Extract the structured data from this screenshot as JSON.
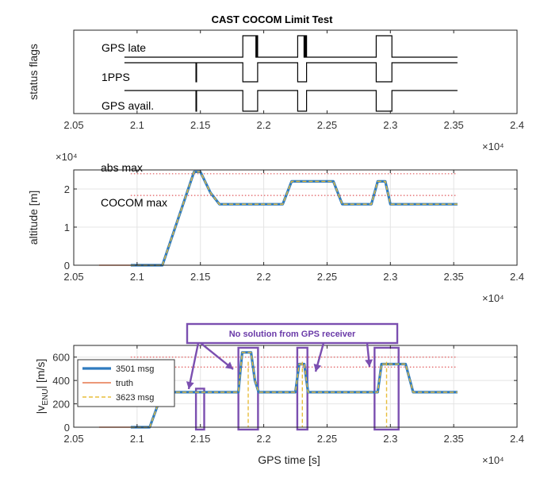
{
  "title": "CAST COCOM Limit Test",
  "colors": {
    "axis": "#262626",
    "grid": "#e4e4e4",
    "flag_line": "#000000",
    "msg3501": "#2f7bbf",
    "truth": "#e5774b",
    "msg3623": "#e8bd3a",
    "limit": "#e0595b",
    "annotation": "#7b4fb0",
    "annotation_text": "#6a3aa8"
  },
  "chart_data": [
    {
      "id": "status",
      "type": "line",
      "ylabel": "status flags",
      "xlim": [
        2.05,
        2.4
      ],
      "x_ticks": [
        2.05,
        2.1,
        2.15,
        2.2,
        2.25,
        2.3,
        2.35,
        2.4
      ],
      "x_tick_labels": [
        "2.05",
        "2.1",
        "2.15",
        "2.2",
        "2.25",
        "2.3",
        "2.35",
        "2.4"
      ],
      "x_exponent": "×10⁴",
      "grid": false,
      "series": [
        {
          "name": "GPS late",
          "x": [
            2.09,
            2.1835,
            2.1835,
            2.1938,
            2.1938,
            2.1945,
            2.1945,
            2.1952,
            2.1952,
            2.2268,
            2.2268,
            2.2318,
            2.2318,
            2.2323,
            2.2323,
            2.2328,
            2.2328,
            2.2333,
            2.2333,
            2.2338,
            2.2338,
            2.2888,
            2.2888,
            2.3012,
            2.3012,
            2.353
          ],
          "y": [
            0,
            0,
            1,
            1,
            0,
            0,
            1,
            1,
            0,
            0,
            1,
            1,
            0,
            0,
            1,
            1,
            0,
            0,
            1,
            1,
            0,
            0,
            1,
            1,
            0,
            0
          ]
        },
        {
          "name": "1PPS",
          "x": [
            2.09,
            2.1465,
            2.1465,
            2.147,
            2.147,
            2.1835,
            2.1835,
            2.1952,
            2.1952,
            2.2268,
            2.2268,
            2.2338,
            2.2338,
            2.2888,
            2.2888,
            2.3012,
            2.3012,
            2.353
          ],
          "y": [
            1,
            1,
            0,
            0,
            1,
            1,
            0,
            0,
            1,
            1,
            0,
            0,
            1,
            1,
            0,
            0,
            1,
            1
          ]
        },
        {
          "name": "GPS avail.",
          "x": [
            2.09,
            2.1465,
            2.1465,
            2.147,
            2.147,
            2.1835,
            2.1835,
            2.1952,
            2.1952,
            2.2268,
            2.2268,
            2.2338,
            2.2338,
            2.2888,
            2.2888,
            2.3012,
            2.3012,
            2.353
          ],
          "y": [
            1,
            1,
            0,
            0,
            1,
            1,
            0,
            0,
            1,
            1,
            0,
            0,
            1,
            1,
            0,
            0,
            1,
            1
          ]
        }
      ]
    },
    {
      "id": "altitude",
      "type": "line",
      "ylabel": "altitude [m]",
      "y_exponent": "×10⁴",
      "xlim": [
        2.05,
        2.4
      ],
      "ylim": [
        0,
        2.5
      ],
      "x_ticks": [
        2.05,
        2.1,
        2.15,
        2.2,
        2.25,
        2.3,
        2.35,
        2.4
      ],
      "x_tick_labels": [
        "2.05",
        "2.1",
        "2.15",
        "2.2",
        "2.25",
        "2.3",
        "2.35",
        "2.4"
      ],
      "y_ticks": [
        0,
        1,
        2
      ],
      "y_tick_labels": [
        "0",
        "1",
        "2"
      ],
      "x_exponent": "×10⁴",
      "grid": true,
      "limits": [
        {
          "label": "abs max",
          "y": 2.4
        },
        {
          "label": "COCOM max",
          "y": 1.83
        }
      ],
      "series": [
        {
          "name": "truth",
          "x": [
            2.07,
            2.095
          ],
          "y": [
            0,
            0
          ]
        },
        {
          "name": "3501 msg",
          "x": [
            2.095,
            2.12,
            2.145,
            2.15,
            2.158,
            2.165,
            2.215,
            2.222,
            2.255,
            2.262,
            2.285,
            2.29,
            2.296,
            2.3,
            2.353
          ],
          "y": [
            0,
            0,
            2.45,
            2.45,
            1.9,
            1.6,
            1.6,
            2.2,
            2.2,
            1.6,
            1.6,
            2.2,
            2.2,
            1.6,
            1.6
          ]
        },
        {
          "name": "3623 msg",
          "x": [
            2.095,
            2.12,
            2.145,
            2.15,
            2.158,
            2.165,
            2.215,
            2.222,
            2.255,
            2.262,
            2.285,
            2.29,
            2.296,
            2.3,
            2.353
          ],
          "y": [
            0,
            0,
            2.45,
            2.45,
            1.9,
            1.6,
            1.6,
            2.2,
            2.2,
            1.6,
            1.6,
            2.2,
            2.2,
            1.6,
            1.6
          ]
        }
      ]
    },
    {
      "id": "velocity",
      "type": "line",
      "ylabel": "|v_ENU| [m/s]",
      "xlabel": "GPS time [s]",
      "xlim": [
        2.05,
        2.4
      ],
      "ylim": [
        0,
        700
      ],
      "x_ticks": [
        2.05,
        2.1,
        2.15,
        2.2,
        2.25,
        2.3,
        2.35,
        2.4
      ],
      "x_tick_labels": [
        "2.05",
        "2.1",
        "2.15",
        "2.2",
        "2.25",
        "2.3",
        "2.35",
        "2.4"
      ],
      "y_ticks": [
        0,
        200,
        400,
        600
      ],
      "y_tick_labels": [
        "0",
        "200",
        "400",
        "600"
      ],
      "x_exponent": "×10⁴",
      "grid": true,
      "legend": {
        "placement": "left",
        "entries": [
          "3501 msg",
          "truth",
          "3623 msg"
        ]
      },
      "limits": [
        {
          "y": 600
        },
        {
          "y": 515
        }
      ],
      "series": [
        {
          "name": "truth",
          "x": [
            2.07,
            2.095
          ],
          "y": [
            0,
            0
          ]
        },
        {
          "name": "3501 msg",
          "x": [
            2.095,
            2.11,
            2.12,
            2.13,
            2.18,
            2.183,
            2.19,
            2.193,
            2.196,
            2.225,
            2.228,
            2.232,
            2.235,
            2.29,
            2.293,
            2.312,
            2.318,
            2.353
          ],
          "y": [
            0,
            0,
            300,
            300,
            300,
            640,
            640,
            400,
            300,
            300,
            540,
            540,
            300,
            300,
            540,
            540,
            300,
            300
          ]
        },
        {
          "name": "3623 msg",
          "x": [
            2.095,
            2.11,
            2.12,
            2.13,
            2.18,
            2.183,
            2.19,
            2.193,
            2.196,
            2.225,
            2.228,
            2.232,
            2.235,
            2.29,
            2.293,
            2.312,
            2.318,
            2.353
          ],
          "y": [
            0,
            0,
            300,
            300,
            300,
            640,
            640,
            400,
            300,
            300,
            540,
            540,
            300,
            300,
            540,
            540,
            300,
            300
          ]
        }
      ],
      "annotation": {
        "text": "No solution from GPS receiver",
        "regions": [
          {
            "x0": 2.1465,
            "x1": 2.153,
            "y0": -20,
            "y1": 330
          },
          {
            "x0": 2.18,
            "x1": 2.1955,
            "y0": -20,
            "y1": 680
          },
          {
            "x0": 2.2265,
            "x1": 2.2345,
            "y0": -20,
            "y1": 680
          },
          {
            "x0": 2.2875,
            "x1": 2.3065,
            "y0": -20,
            "y1": 680
          }
        ]
      }
    }
  ]
}
